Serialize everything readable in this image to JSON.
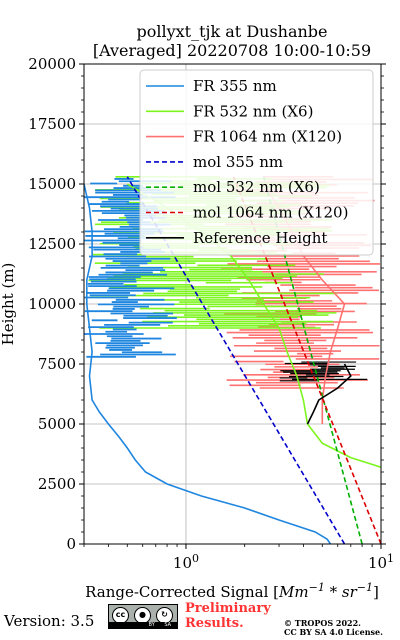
{
  "title_line1": "pollyxt_tjk at Dushanbe",
  "title_line2": "[Averaged] 20220708 10:00-10:59",
  "footer": {
    "version": "Version: 3.5",
    "cc_letters": "cc",
    "by_letters": "BY",
    "sa_letters": "SA",
    "preliminary": [
      "Preliminary",
      "Results."
    ],
    "copyright": [
      "© TROPOS 2022.",
      "CC BY SA 4.0 License."
    ]
  },
  "colors": {
    "fr355": "#1f86e0",
    "fr532": "#7df51e",
    "fr1064": "#ff7070",
    "mol355": "#0000cc",
    "mol532": "#00b000",
    "mol1064": "#dd0000",
    "reference": "#000000"
  },
  "chart_data": {
    "type": "line",
    "xscale": "log",
    "xlim": [
      0.3,
      10
    ],
    "ylim": [
      0,
      20000
    ],
    "xlabel": "Range-Corrected Signal [Mm^-1 * sr^-1]",
    "ylabel": "Height (m)",
    "yticks": [
      0,
      2500,
      5000,
      7500,
      10000,
      12500,
      15000,
      17500,
      20000
    ],
    "xticks": [
      1,
      10
    ],
    "xtick_labels": [
      "10^0",
      "10^1"
    ],
    "grid": true,
    "legend_position": "upper right",
    "series": [
      {
        "key": "fr355",
        "name": "FR 355 nm",
        "style": "solid",
        "points": [
          [
            5.5,
            0
          ],
          [
            5.3,
            200
          ],
          [
            4.6,
            500
          ],
          [
            3.0,
            1000
          ],
          [
            2.0,
            1500
          ],
          [
            1.2,
            2000
          ],
          [
            0.8,
            2500
          ],
          [
            0.62,
            3000
          ],
          [
            0.55,
            3500
          ],
          [
            0.5,
            4000
          ],
          [
            0.45,
            4500
          ],
          [
            0.4,
            5000
          ],
          [
            0.36,
            5500
          ],
          [
            0.33,
            6000
          ],
          [
            0.32,
            7000
          ],
          [
            0.33,
            8000
          ],
          [
            0.32,
            9000
          ],
          [
            0.31,
            10000
          ],
          [
            0.31,
            11000
          ],
          [
            0.33,
            12000
          ],
          [
            0.33,
            13000
          ],
          [
            0.32,
            14000
          ],
          [
            0.3,
            15000
          ]
        ]
      },
      {
        "key": "fr532",
        "name": "FR 532 nm (X6)",
        "style": "solid",
        "points": [
          [
            10.0,
            3200
          ],
          [
            7.0,
            3600
          ],
          [
            5.0,
            4200
          ],
          [
            4.2,
            5000
          ],
          [
            4.0,
            6000
          ],
          [
            3.7,
            7000
          ],
          [
            3.3,
            8000
          ],
          [
            3.0,
            9000
          ],
          [
            2.5,
            10000
          ],
          [
            2.1,
            11000
          ],
          [
            1.7,
            12000
          ],
          [
            1.2,
            13000
          ],
          [
            0.8,
            14000
          ],
          [
            0.5,
            15000
          ]
        ]
      },
      {
        "key": "fr1064",
        "name": "FR 1064 nm (X120)",
        "style": "solid",
        "points": [
          [
            5.0,
            5000
          ],
          [
            5.0,
            6000
          ],
          [
            5.2,
            7000
          ],
          [
            5.5,
            8000
          ],
          [
            6.0,
            9000
          ],
          [
            6.5,
            10000
          ],
          [
            5.0,
            11000
          ],
          [
            4.0,
            12000
          ],
          [
            3.5,
            13000
          ],
          [
            3.0,
            14000
          ],
          [
            2.5,
            15000
          ]
        ]
      },
      {
        "key": "mol355",
        "name": "mol 355 nm",
        "style": "dashed",
        "points": [
          [
            6.5,
            0
          ],
          [
            0.5,
            15300
          ]
        ]
      },
      {
        "key": "mol532",
        "name": "mol 532 nm (X6)",
        "style": "dashed",
        "points": [
          [
            8.0,
            0
          ],
          [
            2.5,
            15300
          ]
        ]
      },
      {
        "key": "mol1064",
        "name": "mol 1064 nm (X120)",
        "style": "dashed",
        "points": [
          [
            10.0,
            0
          ],
          [
            1.75,
            15300
          ]
        ]
      },
      {
        "key": "reference",
        "name": "Reference Height",
        "style": "solid",
        "points": [
          [
            4.2,
            5000
          ],
          [
            4.5,
            5500
          ],
          [
            4.8,
            6000
          ],
          [
            6.0,
            6500
          ],
          [
            7.0,
            7000
          ],
          [
            6.5,
            7500
          ]
        ]
      }
    ]
  }
}
